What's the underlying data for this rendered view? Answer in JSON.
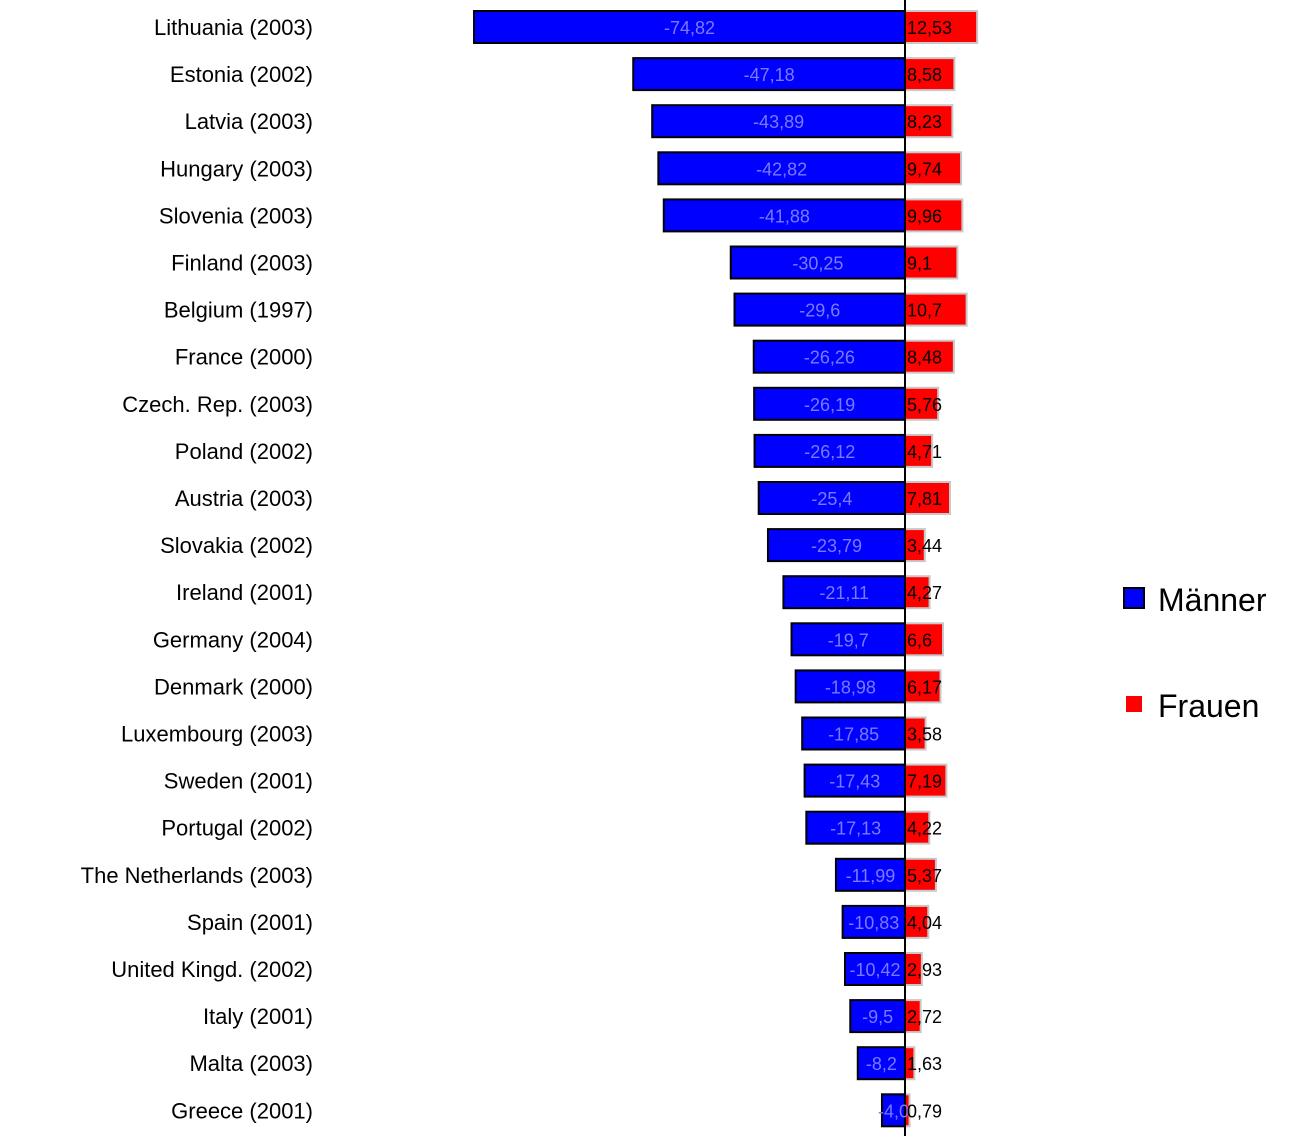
{
  "chart_data": {
    "type": "bar",
    "orientation": "horizontal",
    "categories": [
      "Lithuania (2003)",
      "Estonia (2002)",
      "Latvia (2003)",
      "Hungary (2003)",
      "Slovenia (2003)",
      "Finland (2003)",
      "Belgium (1997)",
      "France (2000)",
      "Czech. Rep. (2003)",
      "Poland (2002)",
      "Austria (2003)",
      "Slovakia (2002)",
      "Ireland (2001)",
      "Germany (2004)",
      "Denmark (2000)",
      "Luxembourg (2003)",
      "Sweden (2001)",
      "Portugal (2002)",
      "The Netherlands (2003)",
      "Spain (2001)",
      "United Kingd. (2002)",
      "Italy (2001)",
      "Malta (2003)",
      "Greece (2001)"
    ],
    "series": [
      {
        "name": "Männer",
        "color": "#0000ff",
        "values": [
          -74.82,
          -47.18,
          -43.89,
          -42.82,
          -41.88,
          -30.25,
          -29.6,
          -26.26,
          -26.19,
          -26.12,
          -25.4,
          -23.79,
          -21.11,
          -19.7,
          -18.98,
          -17.85,
          -17.43,
          -17.13,
          -11.99,
          -10.83,
          -10.42,
          -9.5,
          -8.2,
          -4.0
        ],
        "labels": [
          "-74,82",
          "-47,18",
          "-43,89",
          "-42,82",
          "-41,88",
          "-30,25",
          "-29,6",
          "-26,26",
          "-26,19",
          "-26,12",
          "-25,4",
          "-23,79",
          "-21,11",
          "-19,7",
          "-18,98",
          "-17,85",
          "-17,43",
          "-17,13",
          "-11,99",
          "-10,83",
          "-10,42",
          "-9,5",
          "-8,2",
          "-4,0"
        ]
      },
      {
        "name": "Frauen",
        "color": "#ff0000",
        "values": [
          12.53,
          8.58,
          8.23,
          9.74,
          9.96,
          9.1,
          10.7,
          8.48,
          5.76,
          4.71,
          7.81,
          3.44,
          4.27,
          6.6,
          6.17,
          3.58,
          7.19,
          4.22,
          5.37,
          4.04,
          2.93,
          2.72,
          1.63,
          0.79
        ],
        "labels": [
          "12,53",
          "8,58",
          "8,23",
          "9,74",
          "9,96",
          "9,1",
          "10,7",
          "8,48",
          "5,76",
          "4,71",
          "7,81",
          "3,44",
          "4,27",
          "6,6",
          "6,17",
          "3,58",
          "7,19",
          "4,22",
          "5,37",
          "4,04",
          "2,93",
          "2,72",
          "1,63",
          "0,79"
        ]
      }
    ],
    "title": "",
    "xlabel": "",
    "ylabel": "",
    "xlim": [
      -75,
      13
    ],
    "grid": false,
    "legend": {
      "placement": "right",
      "items": [
        "Männer",
        "Frauen"
      ]
    }
  }
}
